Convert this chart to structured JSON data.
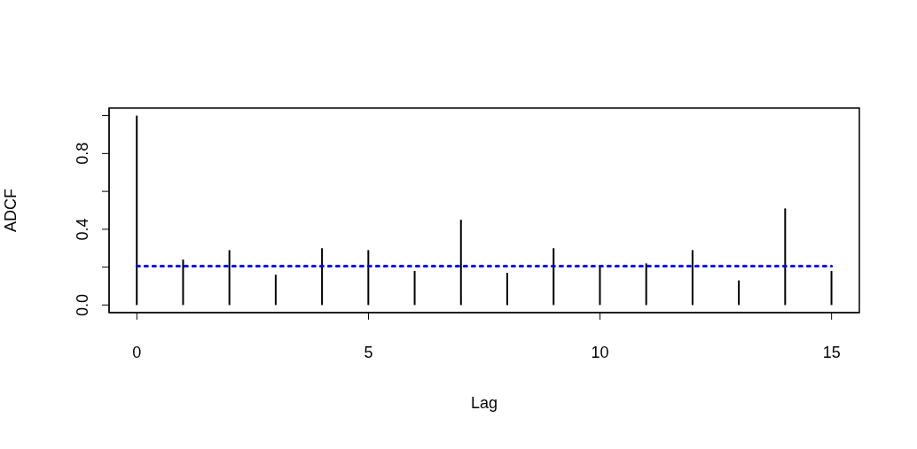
{
  "chart_data": {
    "type": "bar",
    "xlabel": "Lag",
    "ylabel": "ADCF",
    "x": [
      0,
      1,
      2,
      3,
      4,
      5,
      6,
      7,
      8,
      9,
      10,
      11,
      12,
      13,
      14,
      15
    ],
    "values": [
      1.0,
      0.24,
      0.29,
      0.16,
      0.3,
      0.29,
      0.18,
      0.45,
      0.17,
      0.3,
      0.21,
      0.22,
      0.29,
      0.13,
      0.51,
      0.18
    ],
    "color": "#000000",
    "xlim": [
      -0.6,
      15.6
    ],
    "xticks": [
      0,
      5,
      10,
      15
    ],
    "ylim": [
      -0.04,
      1.04
    ],
    "yticks": [
      {
        "value": 0,
        "label": "0.0"
      },
      {
        "value": 0.2,
        "label": null
      },
      {
        "value": 0.4,
        "label": "0.4"
      },
      {
        "value": 0.6,
        "label": null
      },
      {
        "value": 0.8,
        "label": "0.8"
      },
      {
        "value": 1.0,
        "label": null
      }
    ],
    "ref_lines": [
      {
        "axis": "y",
        "value": 0.206,
        "color": "#0000ff",
        "line_style": "dotted"
      }
    ]
  }
}
